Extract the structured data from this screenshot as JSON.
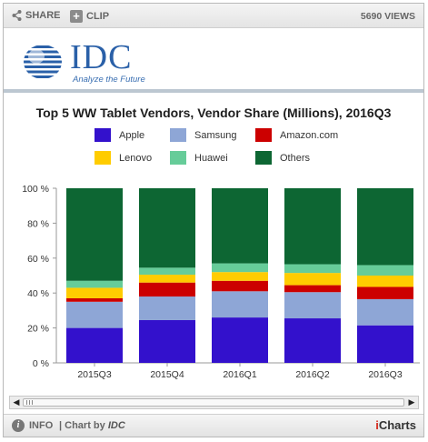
{
  "toolbar": {
    "share_label": "SHARE",
    "clip_label": "CLIP",
    "views_label": "5690 VIEWS"
  },
  "logo": {
    "name": "IDC",
    "tagline": "Analyze the Future"
  },
  "footer": {
    "info_label": "INFO",
    "chart_by_label": "| Chart by",
    "chart_by_brand": "IDC",
    "powered_i": "i",
    "powered_rest": "Charts"
  },
  "chart_data": {
    "type": "bar",
    "stacked": true,
    "percent": true,
    "title": "Top 5 WW Tablet Vendors, Vendor Share (Millions), 2016Q3",
    "categories": [
      "2015Q3",
      "2015Q4",
      "2016Q1",
      "2016Q2",
      "2016Q3"
    ],
    "ylim": [
      0,
      100
    ],
    "yticks": [
      "0 %",
      "20 %",
      "40 %",
      "60 %",
      "80 %",
      "100 %"
    ],
    "grid": false,
    "legend_position": "top",
    "series": [
      {
        "name": "Apple",
        "color": "#3311cc",
        "values": [
          20,
          24.5,
          26,
          25.5,
          21.5
        ]
      },
      {
        "name": "Samsung",
        "color": "#8ea6d6",
        "values": [
          15,
          13.5,
          15,
          15,
          15
        ]
      },
      {
        "name": "Amazon.com",
        "color": "#cc0000",
        "values": [
          2,
          8,
          6,
          4,
          7
        ]
      },
      {
        "name": "Lenovo",
        "color": "#ffcc00",
        "values": [
          6,
          4.5,
          5,
          7,
          6.5
        ]
      },
      {
        "name": "Huawei",
        "color": "#66cc99",
        "values": [
          4,
          4,
          5,
          5,
          6
        ]
      },
      {
        "name": "Others",
        "color": "#0d6633",
        "values": [
          53,
          45.5,
          43,
          43.5,
          44
        ]
      }
    ]
  }
}
